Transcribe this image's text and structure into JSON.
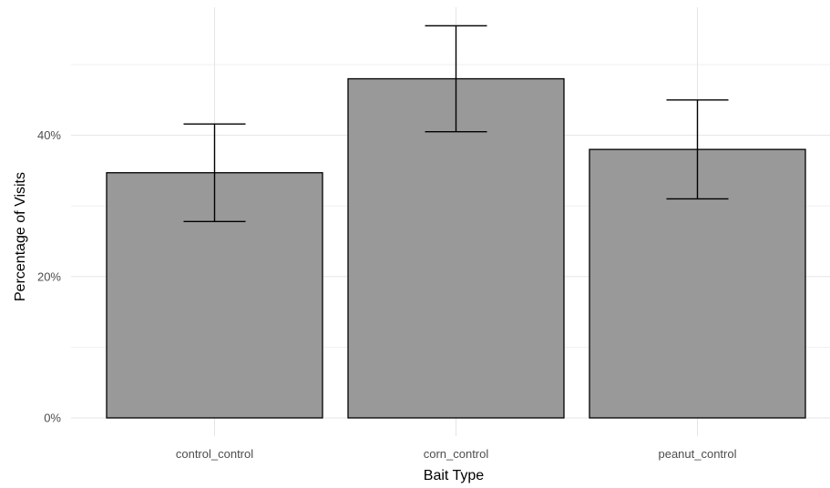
{
  "chart_data": {
    "type": "bar",
    "categories": [
      "control_control",
      "corn_control",
      "peanut_control"
    ],
    "values": [
      34.7,
      48.0,
      38.0
    ],
    "error_bars": {
      "lower": [
        27.8,
        40.5,
        31.0
      ],
      "upper": [
        41.6,
        55.5,
        45.0
      ]
    },
    "xlabel": "Bait Type",
    "ylabel": "Percentage of Visits",
    "ylim": [
      0,
      58
    ],
    "y_ticks": [
      0,
      20,
      40
    ],
    "y_tick_labels": [
      "0%",
      "20%",
      "40%"
    ],
    "y_minor_ticks": [
      10,
      30,
      50
    ],
    "grid": true,
    "legend": "none",
    "colors": {
      "bar_fill": "#999999",
      "bar_stroke": "#000000",
      "grid_major": "#e5e5e5",
      "grid_minor": "#f0f0f0",
      "background": "#ffffff"
    }
  }
}
